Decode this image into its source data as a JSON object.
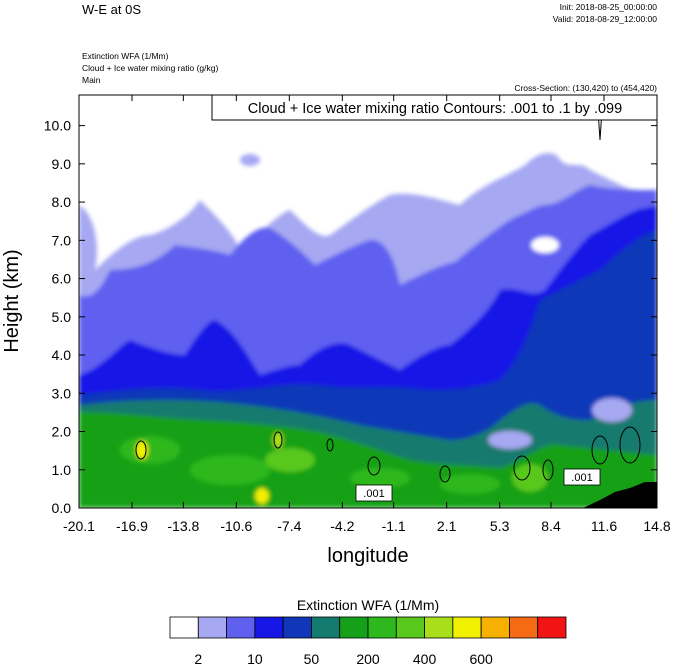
{
  "header": {
    "title": "W-E at 0S",
    "init": "Init: 2018-08-25_00:00:00",
    "valid": "Valid: 2018-08-29_12:00:00",
    "fields": [
      "Extinction WFA   (1/Mm)",
      "Cloud + Ice water mixing ratio   (g/kg)",
      "Main"
    ],
    "cross_section": "Cross-Section: (130,420) to (454,420)",
    "contour_info": "Cloud + Ice water mixing ratio Contours: .001 to .1 by .099"
  },
  "chart_data": {
    "type": "heatmap",
    "xlabel": "longitude",
    "ylabel": "Height (km)",
    "xlim": [
      -20.1,
      14.8
    ],
    "ylim": [
      0.0,
      10.8
    ],
    "x_ticks": [
      "-20.1",
      "-16.9",
      "-13.8",
      "-10.6",
      "-7.4",
      "-4.2",
      "-1.1",
      "2.1",
      "5.3",
      "8.4",
      "11.6",
      "14.8"
    ],
    "y_ticks": [
      "0.0",
      "1.0",
      "2.0",
      "3.0",
      "4.0",
      "5.0",
      "6.0",
      "7.0",
      "8.0",
      "9.0",
      "10.0"
    ],
    "contour_labels": [
      ".001",
      ".001"
    ],
    "colorbar": {
      "title": "Extinction WFA  (1/Mm)",
      "colors": [
        "#ffffff",
        "#a6a8f2",
        "#5f60f0",
        "#1616e6",
        "#1037b8",
        "#127a6e",
        "#14a018",
        "#2fb81e",
        "#58c81c",
        "#a8de1a",
        "#f0f000",
        "#f5b000",
        "#f56a14",
        "#f01414"
      ],
      "tick_labels": [
        "2",
        "10",
        "50",
        "200",
        "400",
        "600"
      ]
    }
  }
}
